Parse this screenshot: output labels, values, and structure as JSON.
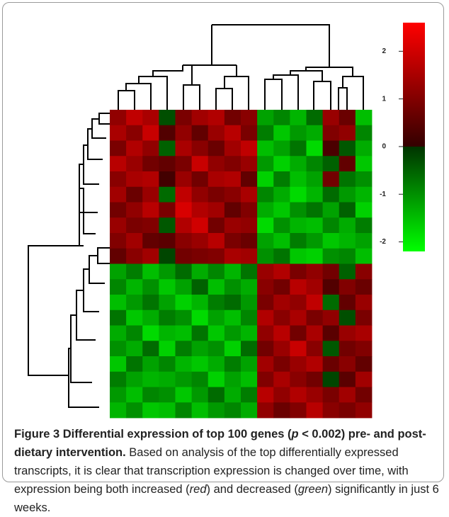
{
  "chart_data": {
    "type": "heatmap",
    "values": [
      [
        1.2,
        1.8,
        1.5,
        -0.3,
        0.9,
        1.4,
        1.6,
        0.8,
        1.1,
        -1.2,
        -0.9,
        -1.4,
        -0.6,
        1.3,
        0.7,
        -1.5
      ],
      [
        1.5,
        1.1,
        1.9,
        0.4,
        1.2,
        0.6,
        1.3,
        1.7,
        0.9,
        -0.8,
        -1.6,
        -1.1,
        -1.3,
        1.0,
        1.2,
        -0.9
      ],
      [
        0.9,
        1.6,
        1.2,
        -0.5,
        1.5,
        1.1,
        0.7,
        1.4,
        1.8,
        -1.5,
        -1.2,
        -0.7,
        -1.8,
        0.3,
        -0.4,
        -1.3
      ],
      [
        1.7,
        1.3,
        0.8,
        0.6,
        0.9,
        1.9,
        1.2,
        1.0,
        1.3,
        -1.1,
        -1.7,
        -1.3,
        -0.9,
        -0.5,
        0.6,
        -1.6
      ],
      [
        1.1,
        1.5,
        1.6,
        0.2,
        1.3,
        0.8,
        1.5,
        1.6,
        0.6,
        -1.7,
        -0.8,
        -1.5,
        -1.2,
        0.8,
        -0.7,
        -1.0
      ],
      [
        1.4,
        0.7,
        1.3,
        -0.6,
        1.8,
        1.2,
        0.9,
        1.1,
        1.5,
        -0.9,
        -1.3,
        -1.8,
        -1.4,
        -0.6,
        -1.1,
        -1.4
      ],
      [
        0.8,
        1.2,
        1.7,
        0.9,
        2.1,
        1.6,
        1.4,
        0.6,
        1.0,
        -1.3,
        -1.6,
        -1.0,
        -0.7,
        -1.2,
        -0.5,
        -1.7
      ],
      [
        1.3,
        0.9,
        1.0,
        -0.4,
        1.6,
        2.0,
        0.8,
        1.3,
        1.2,
        -1.8,
        -1.0,
        -1.4,
        -1.5,
        -0.9,
        -1.3,
        -0.8
      ],
      [
        1.0,
        1.4,
        0.6,
        0.5,
        1.1,
        1.3,
        1.7,
        0.9,
        0.7,
        -1.2,
        -1.5,
        -0.8,
        -1.1,
        -1.6,
        -1.4,
        -1.2
      ],
      [
        0.6,
        1.1,
        1.4,
        -0.2,
        0.8,
        0.9,
        1.0,
        1.5,
        1.4,
        -1.0,
        -0.7,
        -1.6,
        -1.7,
        -1.0,
        -0.9,
        -1.5
      ],
      [
        -1.2,
        -0.8,
        -1.5,
        -1.1,
        -0.6,
        -1.3,
        -0.9,
        -1.4,
        -0.7,
        1.3,
        1.6,
        0.9,
        1.2,
        0.8,
        -0.5,
        1.1
      ],
      [
        -0.9,
        -1.4,
        -1.0,
        -1.6,
        -1.2,
        -0.5,
        -1.5,
        -1.0,
        -1.3,
        1.1,
        0.8,
        1.7,
        1.4,
        0.4,
        1.0,
        0.7
      ],
      [
        -1.5,
        -1.1,
        -0.7,
        -1.2,
        -1.7,
        -1.4,
        -0.8,
        -0.6,
        -1.1,
        0.9,
        1.4,
        1.2,
        1.8,
        -0.6,
        0.6,
        1.3
      ],
      [
        -0.7,
        -1.6,
        -1.3,
        -0.8,
        -1.0,
        -1.8,
        -1.2,
        -1.5,
        -0.9,
        1.6,
        1.1,
        1.5,
        0.9,
        1.2,
        -0.3,
        0.9
      ],
      [
        -1.3,
        -0.9,
        -1.8,
        -1.4,
        -1.5,
        -0.7,
        -1.6,
        -1.1,
        -1.4,
        1.2,
        1.7,
        0.8,
        1.5,
        0.5,
        1.3,
        1.5
      ],
      [
        -1.0,
        -1.3,
        -0.6,
        -1.7,
        -0.8,
        -1.2,
        -1.0,
        -1.7,
        -0.6,
        0.8,
        1.3,
        1.9,
        1.1,
        -0.4,
        0.8,
        1.0
      ],
      [
        -1.6,
        -0.7,
        -1.2,
        -0.9,
        -1.4,
        -1.6,
        -1.3,
        -0.8,
        -1.2,
        1.4,
        0.9,
        1.3,
        1.6,
        0.7,
        1.1,
        0.6
      ],
      [
        -0.8,
        -1.2,
        -1.4,
        -1.3,
        -1.1,
        -0.9,
        -1.7,
        -1.2,
        -1.5,
        1.0,
        1.5,
        1.1,
        0.8,
        -0.2,
        0.5,
        1.4
      ],
      [
        -1.1,
        -1.5,
        -0.9,
        -1.0,
        -1.6,
        -1.1,
        -0.6,
        -1.3,
        -0.8,
        1.7,
        1.2,
        1.6,
        1.3,
        0.9,
        1.4,
        0.8
      ],
      [
        -1.4,
        -1.0,
        -1.6,
        -1.5,
        -0.9,
        -1.5,
        -1.1,
        -0.9,
        -1.3,
        1.2,
        0.7,
        1.0,
        1.7,
        1.1,
        0.9,
        1.2
      ]
    ],
    "clim": [
      -2.2,
      2.6
    ],
    "cticks": [
      -2,
      -1,
      0,
      1,
      2
    ],
    "colors": [
      "#00ff00",
      "#003300",
      "#330000",
      "#ff0000"
    ]
  },
  "caption": {
    "title": [
      "Figure 3 Differential expression of top 100 genes (",
      "p",
      " < 0.002) pre- and post-dietary intervention."
    ],
    "body": [
      "Based on analysis of the top differentially expressed transcripts, it is clear that transcription expression is changed over time, with expression being both increased (",
      "red",
      ") and decreased (",
      "green",
      ") significantly in just 6 weeks."
    ]
  }
}
